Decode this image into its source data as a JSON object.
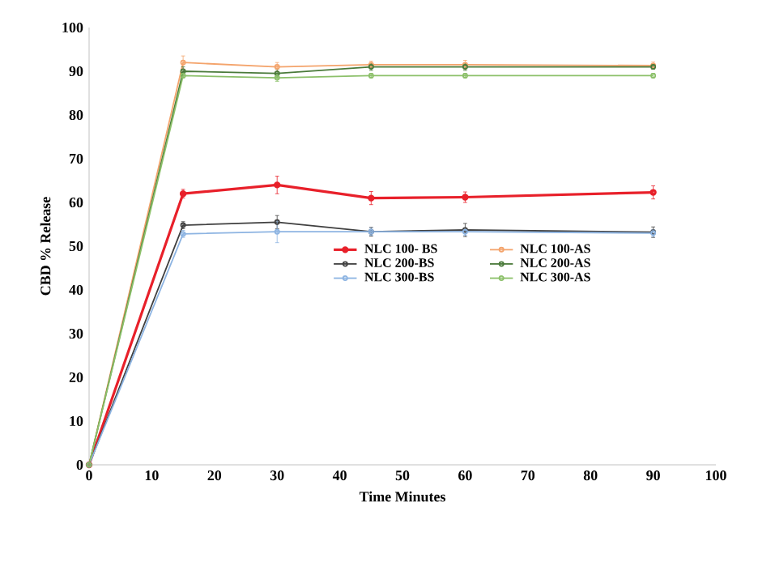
{
  "chart_data": {
    "type": "line",
    "xlabel": "Time Minutes",
    "ylabel": "CBD % Release",
    "x": [
      0,
      15,
      30,
      45,
      60,
      90
    ],
    "xlim": [
      0,
      100
    ],
    "xticks": [
      0,
      10,
      20,
      30,
      40,
      50,
      60,
      70,
      80,
      90,
      100
    ],
    "ylim": [
      0,
      100
    ],
    "yticks": [
      0,
      10,
      20,
      30,
      40,
      50,
      60,
      70,
      80,
      90,
      100
    ],
    "grid": false,
    "legend": "center",
    "marker": "circle",
    "line_style": "solid",
    "series": [
      {
        "name": "NLC 100- BS",
        "color": "#e8202a",
        "values": [
          0,
          62,
          64,
          61,
          61.2,
          62.3
        ],
        "errors": [
          null,
          1,
          2,
          1.5,
          1.2,
          1.5
        ]
      },
      {
        "name": "NLC 100-AS",
        "color": "#f4a46c",
        "values": [
          0,
          92,
          91,
          91.5,
          91.5,
          91.3
        ],
        "errors": [
          null,
          1.5,
          1,
          0.8,
          1,
          0.8
        ]
      },
      {
        "name": "NLC 200-BS",
        "color": "#404040",
        "values": [
          0,
          54.8,
          55.5,
          53.3,
          53.7,
          53.2
        ],
        "errors": [
          null,
          0.8,
          1.5,
          1,
          1.5,
          1.2
        ]
      },
      {
        "name": "NLC 200-AS",
        "color": "#4a7a3a",
        "values": [
          0,
          90,
          89.5,
          91,
          91,
          91
        ],
        "errors": [
          null,
          1,
          1,
          0.8,
          0.8,
          0.5
        ]
      },
      {
        "name": "NLC 300-BS",
        "color": "#8db4e2",
        "values": [
          0,
          52.8,
          53.3,
          53.3,
          53.3,
          53
        ],
        "errors": [
          null,
          0.8,
          2.5,
          0.8,
          0.8,
          0.8
        ]
      },
      {
        "name": "NLC  300-AS",
        "color": "#8cc06a",
        "values": [
          0,
          89,
          88.5,
          89,
          89,
          89
        ],
        "errors": [
          null,
          0.5,
          0.8,
          0.5,
          0.5,
          0.5
        ]
      }
    ]
  }
}
